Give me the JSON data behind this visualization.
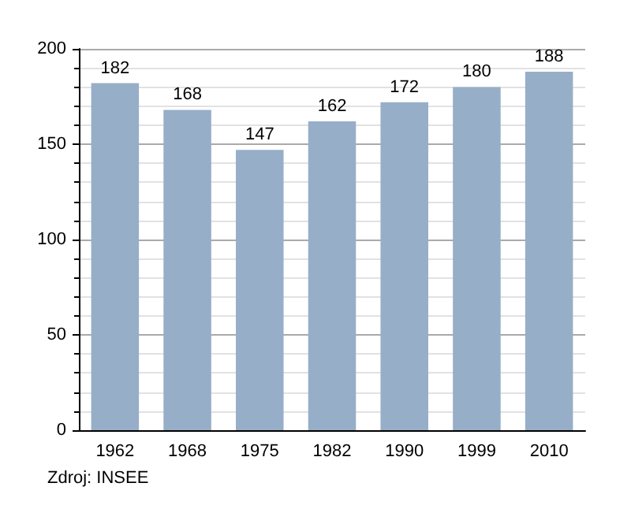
{
  "chart_data": {
    "type": "bar",
    "categories": [
      "1962",
      "1968",
      "1975",
      "1982",
      "1990",
      "1999",
      "2010"
    ],
    "values": [
      182,
      168,
      147,
      162,
      172,
      180,
      188
    ],
    "color": "#97aec8",
    "ylim": [
      0,
      200
    ],
    "yticks": [
      0,
      50,
      100,
      150,
      200
    ],
    "grid": "y",
    "data_labels": true,
    "annotations": [
      "Zdroj: INSEE"
    ]
  }
}
